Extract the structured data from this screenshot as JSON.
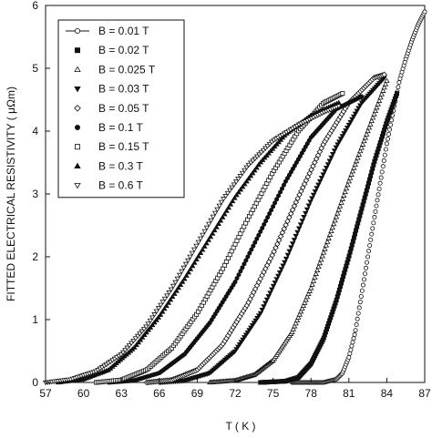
{
  "chart_data": {
    "type": "scatter",
    "xlabel": "T ( K )",
    "ylabel": "FITTED ELECTRICAL RESISTIVITY ( μΩm)",
    "xlim": [
      57,
      87
    ],
    "ylim": [
      0,
      6
    ],
    "xticks": [
      "57",
      "60",
      "63",
      "66",
      "69",
      "72",
      "75",
      "78",
      "81",
      "84",
      "87"
    ],
    "yticks": [
      "0",
      "1",
      "2",
      "3",
      "4",
      "5",
      "6"
    ],
    "grid": false,
    "legend_position": "top-left",
    "series": [
      {
        "name": "B = 0.01 T",
        "marker": "circle-open",
        "points": [
          [
            76.5,
            0
          ],
          [
            79,
            0
          ],
          [
            80,
            0.05
          ],
          [
            80.5,
            0.15
          ],
          [
            81,
            0.4
          ],
          [
            81.5,
            0.8
          ],
          [
            82,
            1.4
          ],
          [
            82.5,
            2.0
          ],
          [
            83,
            2.6
          ],
          [
            83.5,
            3.2
          ],
          [
            84,
            3.8
          ],
          [
            84.5,
            4.3
          ],
          [
            85,
            4.8
          ],
          [
            85.5,
            5.15
          ],
          [
            86,
            5.45
          ],
          [
            86.5,
            5.7
          ],
          [
            87,
            5.9
          ]
        ]
      },
      {
        "name": "B = 0.02 T",
        "marker": "square-filled",
        "points": [
          [
            74,
            0
          ],
          [
            76,
            0.02
          ],
          [
            77,
            0.08
          ],
          [
            78,
            0.3
          ],
          [
            79,
            0.7
          ],
          [
            80,
            1.3
          ],
          [
            81,
            2.0
          ],
          [
            82,
            2.75
          ],
          [
            83,
            3.5
          ],
          [
            84,
            4.15
          ],
          [
            84.8,
            4.6
          ]
        ]
      },
      {
        "name": "B = 0.025 T",
        "marker": "triangle-open",
        "points": [
          [
            70,
            0
          ],
          [
            72,
            0.03
          ],
          [
            73.5,
            0.12
          ],
          [
            75,
            0.35
          ],
          [
            76.5,
            0.8
          ],
          [
            78,
            1.5
          ],
          [
            79.5,
            2.35
          ],
          [
            81,
            3.2
          ],
          [
            82.5,
            4.0
          ],
          [
            84,
            4.8
          ]
        ]
      },
      {
        "name": "B = 0.03 T",
        "marker": "triangle-down-filled",
        "points": [
          [
            66,
            0
          ],
          [
            68,
            0.03
          ],
          [
            70,
            0.15
          ],
          [
            72,
            0.5
          ],
          [
            74,
            1.1
          ],
          [
            76,
            1.95
          ],
          [
            78,
            2.9
          ],
          [
            80,
            3.75
          ],
          [
            82,
            4.45
          ],
          [
            83.8,
            4.85
          ]
        ]
      },
      {
        "name": "B = 0.05 T",
        "marker": "diamond-open",
        "points": [
          [
            65,
            0
          ],
          [
            67,
            0.04
          ],
          [
            69,
            0.2
          ],
          [
            71,
            0.6
          ],
          [
            73,
            1.25
          ],
          [
            75,
            2.05
          ],
          [
            77,
            2.95
          ],
          [
            79,
            3.8
          ],
          [
            81,
            4.45
          ],
          [
            83,
            4.85
          ],
          [
            83.8,
            4.9
          ]
        ]
      },
      {
        "name": "B = 0.1 T",
        "marker": "circle-filled",
        "points": [
          [
            62,
            0
          ],
          [
            64,
            0.03
          ],
          [
            66,
            0.15
          ],
          [
            68,
            0.45
          ],
          [
            70,
            0.95
          ],
          [
            72,
            1.6
          ],
          [
            74,
            2.4
          ],
          [
            76,
            3.2
          ],
          [
            78,
            3.9
          ],
          [
            80,
            4.35
          ],
          [
            82,
            4.55
          ]
        ]
      },
      {
        "name": "B = 0.15 T",
        "marker": "square-open",
        "points": [
          [
            61,
            0
          ],
          [
            63,
            0.04
          ],
          [
            65,
            0.2
          ],
          [
            67,
            0.55
          ],
          [
            69,
            1.1
          ],
          [
            71,
            1.8
          ],
          [
            73,
            2.6
          ],
          [
            75,
            3.35
          ],
          [
            77,
            4.0
          ],
          [
            79,
            4.45
          ],
          [
            80.5,
            4.6
          ]
        ]
      },
      {
        "name": "B = 0.3 T",
        "marker": "triangle-filled",
        "points": [
          [
            58,
            0
          ],
          [
            60,
            0.05
          ],
          [
            62,
            0.2
          ],
          [
            64,
            0.55
          ],
          [
            66,
            1.05
          ],
          [
            68,
            1.65
          ],
          [
            70,
            2.3
          ],
          [
            72,
            2.95
          ],
          [
            74,
            3.5
          ],
          [
            76,
            3.95
          ],
          [
            78,
            4.25
          ],
          [
            80.2,
            4.45
          ]
        ]
      },
      {
        "name": "B = 0.6 T",
        "marker": "triangle-down-open",
        "points": [
          [
            57,
            0
          ],
          [
            59,
            0.05
          ],
          [
            61,
            0.18
          ],
          [
            63,
            0.45
          ],
          [
            65,
            0.9
          ],
          [
            67,
            1.5
          ],
          [
            69,
            2.2
          ],
          [
            71,
            2.9
          ],
          [
            73,
            3.45
          ],
          [
            75,
            3.85
          ],
          [
            77,
            4.1
          ],
          [
            79,
            4.3
          ],
          [
            80.2,
            4.4
          ]
        ]
      }
    ]
  }
}
